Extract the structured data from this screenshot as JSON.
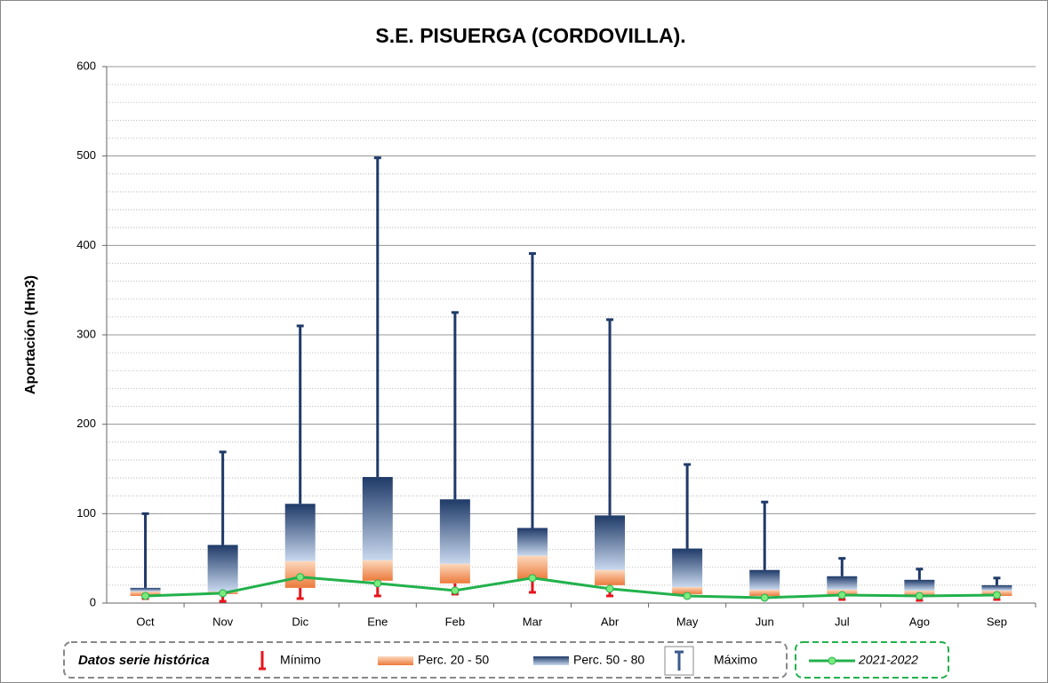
{
  "chart_data": {
    "type": "box",
    "title": "S.E. PISUERGA (CORDOVILLA).",
    "y_label": "Aportación (Hm3)",
    "legend_title": "Datos serie histórica",
    "categories": [
      "Oct",
      "Nov",
      "Dic",
      "Ene",
      "Feb",
      "Mar",
      "Abr",
      "May",
      "Jun",
      "Jul",
      "Ago",
      "Sep"
    ],
    "series": [
      {
        "name": "Mínimo",
        "color": "#e8141b",
        "values": [
          5,
          2,
          5,
          8,
          10,
          12,
          8,
          7,
          5,
          4,
          3,
          4
        ]
      },
      {
        "name": "Perc. 20 - 50",
        "color": "#f0884a",
        "values": [
          8,
          10,
          17,
          25,
          22,
          26,
          20,
          10,
          8,
          8,
          7,
          8
        ],
        "upper": [
          13,
          13,
          47,
          48,
          44,
          53,
          37,
          18,
          15,
          15,
          14,
          14
        ]
      },
      {
        "name": "Perc. 50 - 80",
        "color": "#1f3a68",
        "values": [
          17,
          65,
          111,
          141,
          116,
          84,
          98,
          61,
          37,
          30,
          26,
          20
        ]
      },
      {
        "name": "Máximo",
        "color": "#1f3a68",
        "values": [
          100,
          169,
          310,
          498,
          325,
          391,
          317,
          155,
          113,
          50,
          38,
          28
        ]
      },
      {
        "name": "2021-2022",
        "color": "#22b14c",
        "values": [
          8,
          11,
          29,
          22,
          14,
          28,
          16,
          8,
          6,
          9,
          8,
          9
        ]
      }
    ],
    "ylim": [
      0,
      600
    ],
    "yticks": [
      0,
      100,
      200,
      300,
      400,
      500,
      600
    ],
    "minor_grid": 20,
    "grid": true
  }
}
